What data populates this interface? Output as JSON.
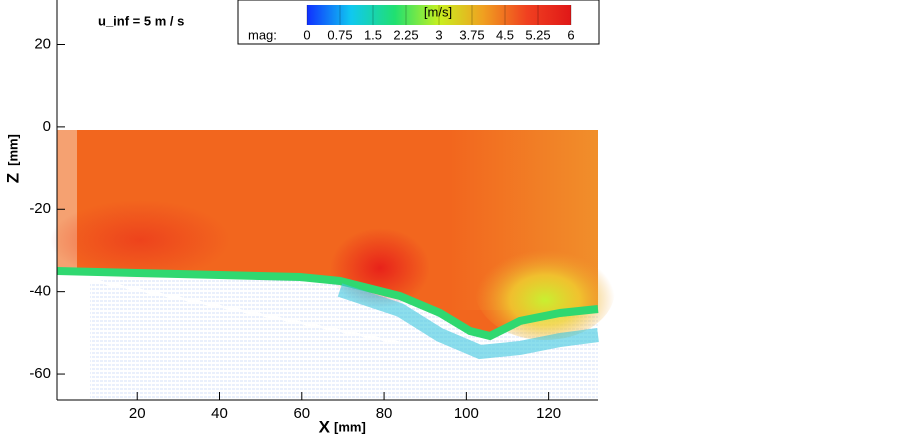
{
  "chart_data": {
    "type": "vector-field",
    "annotation": "u_inf = 5 m / s",
    "x_label": "X",
    "x_unit": "[mm]",
    "y_label": "Z",
    "y_unit": "[mm]",
    "xlim": [
      0.5,
      132
    ],
    "xticks": [
      20,
      40,
      60,
      80,
      100,
      120
    ],
    "ylim": [
      -66.3,
      30.8
    ],
    "yticks": [
      20,
      0,
      -20,
      -40,
      -60
    ],
    "colorbar": {
      "title": "[m/s]",
      "label": "mag:",
      "lim": [
        0,
        6
      ],
      "ticks": [
        0,
        0.75,
        1.5,
        2.25,
        3,
        3.75,
        4.5,
        5.25,
        6
      ],
      "colors": [
        "#1030ff",
        "#10c8f0",
        "#20e070",
        "#c8f020",
        "#f0a020",
        "#f04020",
        "#e01818"
      ]
    }
  }
}
